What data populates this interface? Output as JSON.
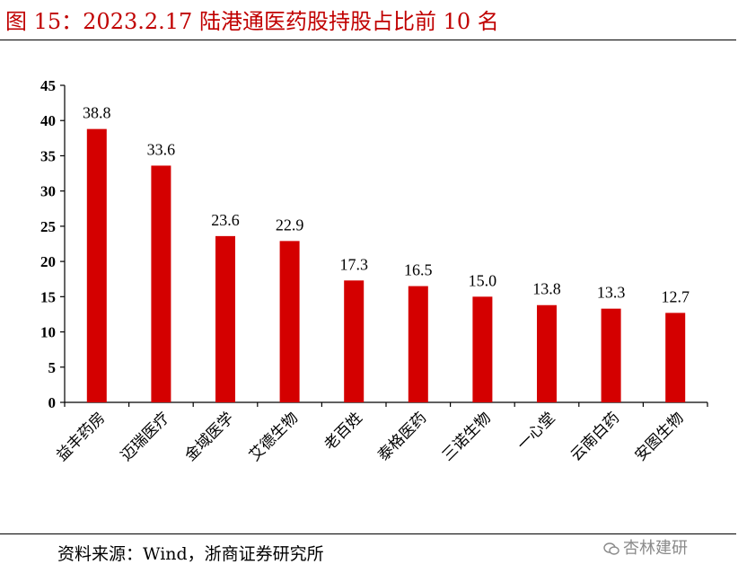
{
  "figure": {
    "title": "图 15：2023.2.17 陆港通医药股持股占比前 10 名",
    "source": "资料来源：Wind，浙商证券研究所",
    "watermark": "杏林建研"
  },
  "colors": {
    "bar": "#d40000",
    "title": "#c00000",
    "axis": "#000000"
  },
  "chart_data": {
    "type": "bar",
    "categories": [
      "益丰药房",
      "迈瑞医疗",
      "金域医学",
      "艾德生物",
      "老百姓",
      "泰格医药",
      "三诺生物",
      "一心堂",
      "云南白药",
      "安图生物"
    ],
    "values": [
      38.8,
      33.6,
      23.6,
      22.9,
      17.3,
      16.5,
      15.0,
      13.8,
      13.3,
      12.7
    ],
    "data_labels": [
      "38.8",
      "33.6",
      "23.6",
      "22.9",
      "17.3",
      "16.5",
      "15.0",
      "13.8",
      "13.3",
      "12.7"
    ],
    "yticks": [
      0,
      5,
      10,
      15,
      20,
      25,
      30,
      35,
      40,
      45
    ],
    "ylim": [
      0,
      45
    ],
    "grid": false,
    "legend": "none"
  }
}
